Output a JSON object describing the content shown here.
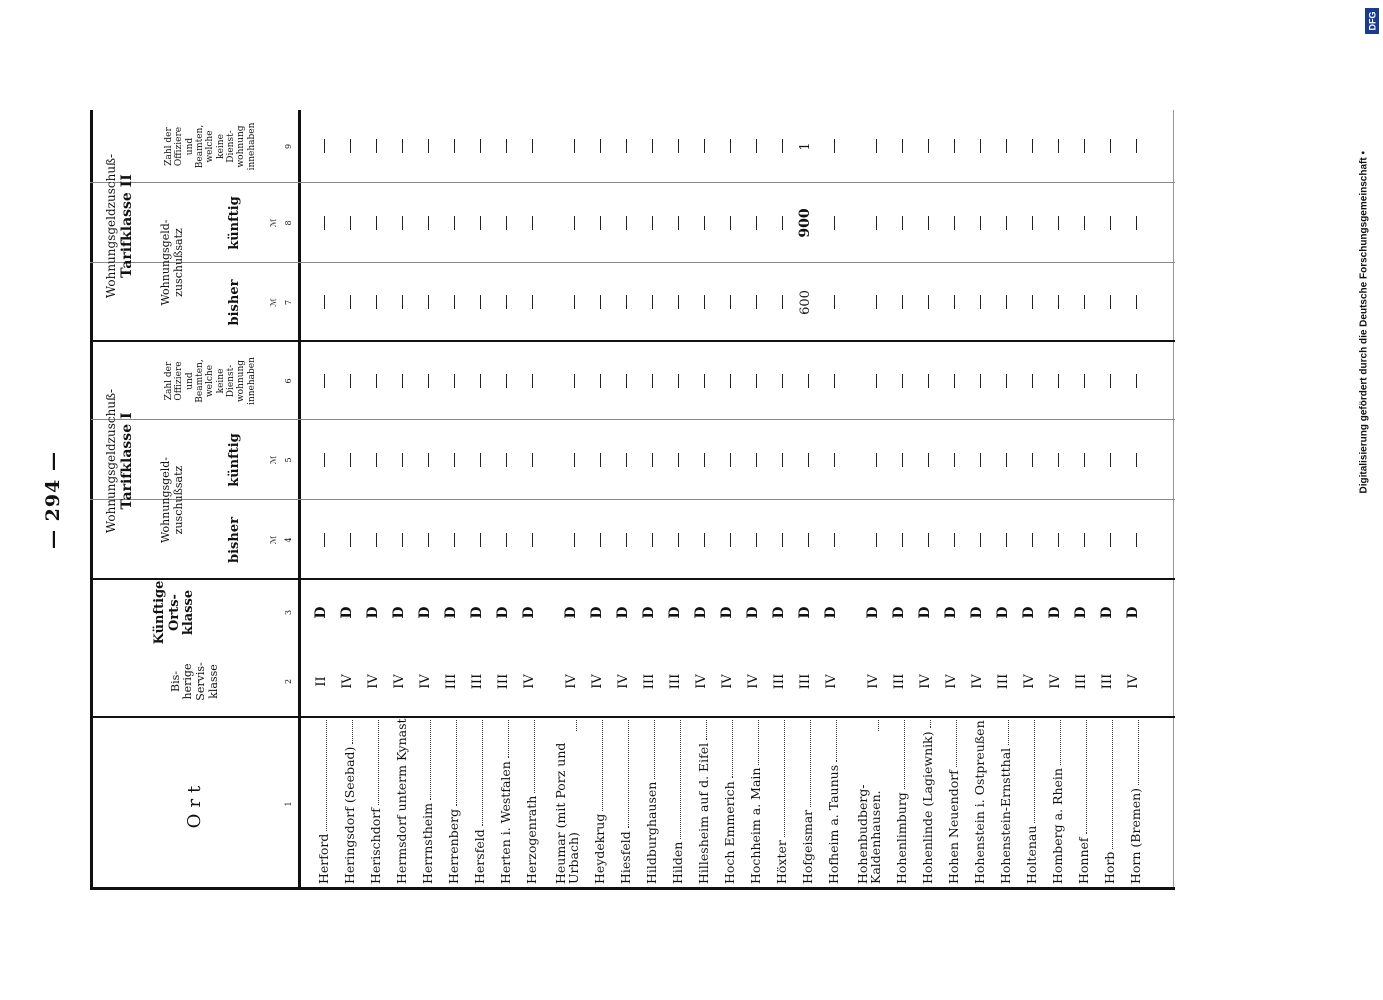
{
  "page_number": "— 294 —",
  "credit": "Digitalisierung gefördert durch die Deutsche Forschungsgemeinschaft •",
  "credit_logo": "DFG",
  "headers": {
    "ort": "Ort",
    "bisherige": "Bis-\nherige\nServis-\nklasse",
    "kuenftige": "Künftige\nOrts-\nklasse",
    "tarif1_title": "Wohnungsgeldzuschuß-",
    "tarif1_sub": "Tarifklasse I",
    "tarif2_title": "Wohnungsgeldzuschuß-",
    "tarif2_sub": "Tarifklasse II",
    "zuschuss": "Wohnungsgeld-\nzuschußsatz",
    "bisher": "bisher",
    "kuenftig": "künftig",
    "mark": "ℳ",
    "zahl": "Zahl der\nOffiziere\nund\nBeamten,\nwelche\nkeine\nDienst-\nwohnung\ninnehaben"
  },
  "col_numbers": [
    "1",
    "2",
    "3",
    "4",
    "5",
    "6",
    "7",
    "8",
    "9"
  ],
  "rows": [
    {
      "ort": "Herford",
      "servis": "II",
      "klasse": "D",
      "c4": "—",
      "c5": "—",
      "c6": "—",
      "c7": "—",
      "c8": "—",
      "c9": "—"
    },
    {
      "ort": "Heringsdorf (Seebad)",
      "servis": "IV",
      "klasse": "D",
      "c4": "—",
      "c5": "—",
      "c6": "—",
      "c7": "—",
      "c8": "—",
      "c9": "—"
    },
    {
      "ort": "Herischdorf",
      "servis": "IV",
      "klasse": "D",
      "c4": "—",
      "c5": "—",
      "c6": "—",
      "c7": "—",
      "c8": "—",
      "c9": "—"
    },
    {
      "ort": "Hermsdorf unterm Kynast",
      "servis": "IV",
      "klasse": "D",
      "c4": "—",
      "c5": "—",
      "c6": "—",
      "c7": "—",
      "c8": "—",
      "c9": "—"
    },
    {
      "ort": "Herrnstheim",
      "servis": "IV",
      "klasse": "D",
      "c4": "—",
      "c5": "—",
      "c6": "—",
      "c7": "—",
      "c8": "—",
      "c9": "—"
    },
    {
      "ort": "Herrenberg",
      "servis": "III",
      "klasse": "D",
      "c4": "—",
      "c5": "—",
      "c6": "—",
      "c7": "—",
      "c8": "—",
      "c9": "—"
    },
    {
      "ort": "Hersfeld",
      "servis": "III",
      "klasse": "D",
      "c4": "—",
      "c5": "—",
      "c6": "—",
      "c7": "—",
      "c8": "—",
      "c9": "—"
    },
    {
      "ort": "Herten i. Westfalen",
      "servis": "III",
      "klasse": "D",
      "c4": "—",
      "c5": "—",
      "c6": "—",
      "c7": "—",
      "c8": "—",
      "c9": "—"
    },
    {
      "ort": "Herzogenrath",
      "servis": "IV",
      "klasse": "D",
      "c4": "—",
      "c5": "—",
      "c6": "—",
      "c7": "—",
      "c8": "—",
      "c9": "—"
    },
    {
      "ort": "Heumar (mit Porz und Urbach)",
      "servis": "IV",
      "klasse": "D",
      "c4": "—",
      "c5": "—",
      "c6": "—",
      "c7": "—",
      "c8": "—",
      "c9": "—"
    },
    {
      "ort": "Heydekrug",
      "servis": "IV",
      "klasse": "D",
      "c4": "—",
      "c5": "—",
      "c6": "—",
      "c7": "—",
      "c8": "—",
      "c9": "—"
    },
    {
      "ort": "Hiesfeld",
      "servis": "IV",
      "klasse": "D",
      "c4": "—",
      "c5": "—",
      "c6": "—",
      "c7": "—",
      "c8": "—",
      "c9": "—"
    },
    {
      "ort": "Hildburghausen",
      "servis": "III",
      "klasse": "D",
      "c4": "—",
      "c5": "—",
      "c6": "—",
      "c7": "—",
      "c8": "—",
      "c9": "—"
    },
    {
      "ort": "Hilden",
      "servis": "III",
      "klasse": "D",
      "c4": "—",
      "c5": "—",
      "c6": "—",
      "c7": "—",
      "c8": "—",
      "c9": "—"
    },
    {
      "ort": "Hillesheim auf d. Eifel",
      "servis": "IV",
      "klasse": "D",
      "c4": "—",
      "c5": "—",
      "c6": "—",
      "c7": "—",
      "c8": "—",
      "c9": "—"
    },
    {
      "ort": "Hoch Emmerich",
      "servis": "IV",
      "klasse": "D",
      "c4": "—",
      "c5": "—",
      "c6": "—",
      "c7": "—",
      "c8": "—",
      "c9": "—"
    },
    {
      "ort": "Hochheim a. Main",
      "servis": "IV",
      "klasse": "D",
      "c4": "—",
      "c5": "—",
      "c6": "—",
      "c7": "—",
      "c8": "—",
      "c9": "—"
    },
    {
      "ort": "Höxter",
      "servis": "III",
      "klasse": "D",
      "c4": "—",
      "c5": "—",
      "c6": "—",
      "c7": "—",
      "c8": "—",
      "c9": "—"
    },
    {
      "ort": "Hofgeismar",
      "servis": "III",
      "klasse": "D",
      "c4": "—",
      "c5": "—",
      "c6": "—",
      "c7": "600",
      "c8": "900",
      "c9": "1"
    },
    {
      "ort": "Hofheim a. Taunus",
      "servis": "IV",
      "klasse": "D",
      "c4": "—",
      "c5": "—",
      "c6": "—",
      "c7": "—",
      "c8": "—",
      "c9": "—"
    },
    {
      "ort": "Hohenbudberg-Kaldenhausen.",
      "servis": "IV",
      "klasse": "D",
      "c4": "—",
      "c5": "—",
      "c6": "—",
      "c7": "—",
      "c8": "—",
      "c9": "—"
    },
    {
      "ort": "Hohenlimburg",
      "servis": "III",
      "klasse": "D",
      "c4": "—",
      "c5": "—",
      "c6": "—",
      "c7": "—",
      "c8": "—",
      "c9": "—"
    },
    {
      "ort": "Hohenlinde (Lagiewnik)",
      "servis": "IV",
      "klasse": "D",
      "c4": "—",
      "c5": "—",
      "c6": "—",
      "c7": "—",
      "c8": "—",
      "c9": "—"
    },
    {
      "ort": "Hohen Neuendorf",
      "servis": "IV",
      "klasse": "D",
      "c4": "—",
      "c5": "—",
      "c6": "—",
      "c7": "—",
      "c8": "—",
      "c9": "—"
    },
    {
      "ort": "Hohenstein i. Ostpreußen",
      "servis": "IV",
      "klasse": "D",
      "c4": "—",
      "c5": "—",
      "c6": "—",
      "c7": "—",
      "c8": "—",
      "c9": "—"
    },
    {
      "ort": "Hohenstein-Ernstthal",
      "servis": "III",
      "klasse": "D",
      "c4": "—",
      "c5": "—",
      "c6": "—",
      "c7": "—",
      "c8": "—",
      "c9": "—"
    },
    {
      "ort": "Holtenau",
      "servis": "IV",
      "klasse": "D",
      "c4": "—",
      "c5": "—",
      "c6": "—",
      "c7": "—",
      "c8": "—",
      "c9": "—"
    },
    {
      "ort": "Homberg a. Rhein",
      "servis": "IV",
      "klasse": "D",
      "c4": "—",
      "c5": "—",
      "c6": "—",
      "c7": "—",
      "c8": "—",
      "c9": "—"
    },
    {
      "ort": "Honnef",
      "servis": "III",
      "klasse": "D",
      "c4": "—",
      "c5": "—",
      "c6": "—",
      "c7": "—",
      "c8": "—",
      "c9": "—"
    },
    {
      "ort": "Horb",
      "servis": "III",
      "klasse": "D",
      "c4": "—",
      "c5": "—",
      "c6": "—",
      "c7": "—",
      "c8": "—",
      "c9": "—"
    },
    {
      "ort": "Horn (Bremen)",
      "servis": "IV",
      "klasse": "D",
      "c4": "—",
      "c5": "—",
      "c6": "—",
      "c7": "—",
      "c8": "—",
      "c9": "—"
    }
  ]
}
